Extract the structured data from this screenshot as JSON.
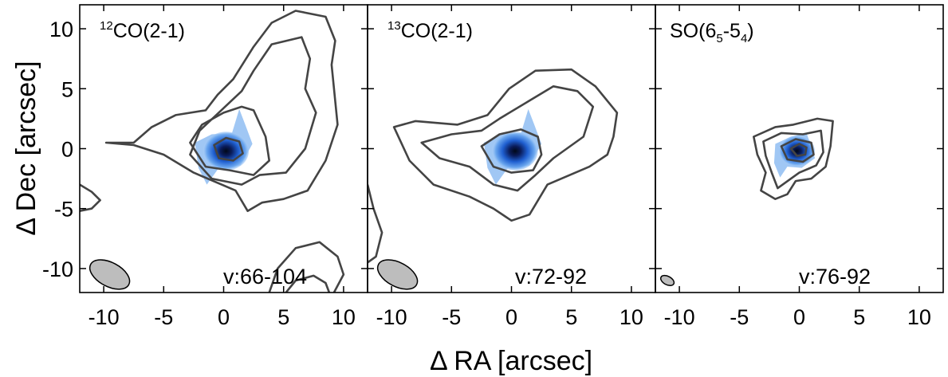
{
  "chart_data": [
    {
      "type": "contour",
      "title_main": "CO(2-1)",
      "title_sup": "12",
      "velocity_label": "v:66-104",
      "xlim": [
        -12,
        12
      ],
      "ylim": [
        -12,
        12
      ],
      "beam": {
        "x": -9.5,
        "y": -10.5,
        "major": 3.6,
        "minor": 2.0,
        "pa_deg": -28
      },
      "emission_peak": {
        "x": 0.2,
        "y": -0.2
      },
      "contours": [
        [
          [
            -9.8,
            0.5
          ],
          [
            -7.5,
            0.5
          ],
          [
            -6,
            1.8
          ],
          [
            -4,
            2.8
          ],
          [
            -1.5,
            3.2
          ],
          [
            -0.5,
            4.5
          ],
          [
            0.8,
            5.8
          ],
          [
            2.5,
            8.5
          ],
          [
            4,
            10.5
          ],
          [
            6,
            11.5
          ],
          [
            8.5,
            11
          ],
          [
            9.3,
            9
          ],
          [
            9,
            7
          ],
          [
            9.2,
            5
          ],
          [
            9.5,
            2
          ],
          [
            8.5,
            -1
          ],
          [
            7,
            -3.5
          ],
          [
            5,
            -4.2
          ],
          [
            3.2,
            -4.5
          ],
          [
            2,
            -5.2
          ],
          [
            1,
            -3.5
          ],
          [
            -2.5,
            -2
          ],
          [
            -5,
            -0.5
          ],
          [
            -7.5,
            0.3
          ],
          [
            -9.8,
            0.5
          ]
        ],
        [
          [
            -2,
            1.5
          ],
          [
            -0.2,
            3.2
          ],
          [
            1.5,
            4.8
          ],
          [
            2.5,
            6.5
          ],
          [
            4,
            8.7
          ],
          [
            6.5,
            9.3
          ],
          [
            7.2,
            7.5
          ],
          [
            6.8,
            5
          ],
          [
            7.7,
            3
          ],
          [
            6.8,
            0
          ],
          [
            5.2,
            -2
          ],
          [
            3,
            -2.2
          ],
          [
            1.5,
            -3
          ],
          [
            -1,
            -2.5
          ],
          [
            -2.8,
            -0.5
          ],
          [
            -2,
            1.5
          ]
        ],
        [
          [
            -2.8,
            0.5
          ],
          [
            -1.8,
            2
          ],
          [
            0,
            3
          ],
          [
            1.5,
            3.5
          ],
          [
            2.5,
            3.2
          ],
          [
            3.5,
            1
          ],
          [
            3.8,
            -1
          ],
          [
            2.5,
            -2.2
          ],
          [
            0.5,
            -1.8
          ],
          [
            -1.5,
            -1.5
          ],
          [
            -2.8,
            0.5
          ]
        ],
        [
          [
            -0.8,
            0.3
          ],
          [
            0.2,
            0.9
          ],
          [
            1.3,
            0.6
          ],
          [
            1.6,
            -0.4
          ],
          [
            0.8,
            -1
          ],
          [
            -0.4,
            -0.8
          ],
          [
            -0.8,
            0.3
          ]
        ],
        [
          [
            -12,
            -3
          ],
          [
            -11,
            -3.6
          ],
          [
            -10.3,
            -4.3
          ],
          [
            -11,
            -5
          ],
          [
            -12,
            -5.2
          ]
        ],
        [
          [
            3.8,
            -12
          ],
          [
            4.5,
            -10
          ],
          [
            6,
            -8.3
          ],
          [
            8,
            -7.8
          ],
          [
            9.5,
            -9
          ],
          [
            10,
            -10.5
          ],
          [
            9.2,
            -12
          ]
        ],
        [
          [
            5.2,
            -12
          ],
          [
            6,
            -11
          ],
          [
            7.5,
            -10.6
          ],
          [
            8.5,
            -11.2
          ],
          [
            8.8,
            -12
          ]
        ]
      ]
    },
    {
      "type": "contour",
      "title_main": "CO(2-1)",
      "title_sup": "13",
      "velocity_label": "v:72-92",
      "xlim": [
        -12,
        12
      ],
      "ylim": [
        -12,
        12
      ],
      "beam": {
        "x": -9.5,
        "y": -10.5,
        "major": 3.6,
        "minor": 2.0,
        "pa_deg": -28
      },
      "emission_peak": {
        "x": 0.3,
        "y": -0.2
      },
      "contours": [
        [
          [
            -9.8,
            1.8
          ],
          [
            -8,
            2.3
          ],
          [
            -4.5,
            2
          ],
          [
            -2,
            2.8
          ],
          [
            -0.2,
            5
          ],
          [
            2,
            6.5
          ],
          [
            5,
            6.6
          ],
          [
            7,
            5.2
          ],
          [
            8.8,
            3
          ],
          [
            8.5,
            1
          ],
          [
            8,
            -0.5
          ],
          [
            6.5,
            -1.5
          ],
          [
            3,
            -3
          ],
          [
            1.5,
            -5.5
          ],
          [
            0,
            -6
          ],
          [
            -1.5,
            -5
          ],
          [
            -3.5,
            -4
          ],
          [
            -6.5,
            -3
          ],
          [
            -8.5,
            -1
          ],
          [
            -9.8,
            1.8
          ]
        ],
        [
          [
            -7.5,
            0.5
          ],
          [
            -5,
            1.2
          ],
          [
            -2.5,
            1.5
          ],
          [
            -1,
            2.5
          ],
          [
            1.5,
            4
          ],
          [
            3.5,
            5.2
          ],
          [
            5.5,
            4.8
          ],
          [
            6.8,
            3.5
          ],
          [
            6,
            1
          ],
          [
            3.5,
            -0.8
          ],
          [
            2,
            -2.2
          ],
          [
            0.5,
            -3.5
          ],
          [
            -1.5,
            -3
          ],
          [
            -3.5,
            -1.5
          ],
          [
            -6,
            -0.8
          ],
          [
            -7.5,
            0.5
          ]
        ],
        [
          [
            -2.5,
            0.2
          ],
          [
            -1,
            1.2
          ],
          [
            0.8,
            1.6
          ],
          [
            2.2,
            1
          ],
          [
            2.5,
            -0.5
          ],
          [
            1.8,
            -1.8
          ],
          [
            0,
            -2
          ],
          [
            -1.5,
            -1.5
          ],
          [
            -2.5,
            0.2
          ]
        ],
        [
          [
            -12,
            -3
          ],
          [
            -11.5,
            -5
          ],
          [
            -10.8,
            -7
          ],
          [
            -11.3,
            -9
          ],
          [
            -12,
            -9.5
          ]
        ]
      ]
    },
    {
      "type": "contour",
      "title_main": "SO(6",
      "title_sub1": "5",
      "title_mid": "-5",
      "title_sub2": "4",
      "title_end": ")",
      "velocity_label": "v:76-92",
      "xlim": [
        -12,
        12
      ],
      "ylim": [
        -12,
        12
      ],
      "beam": {
        "x": -11,
        "y": -11,
        "major": 1.2,
        "minor": 0.7,
        "pa_deg": -28
      },
      "emission_peak": {
        "x": -0.2,
        "y": -0.2
      },
      "contours": [
        [
          [
            -3.8,
            1
          ],
          [
            -2,
            1.8
          ],
          [
            -0.5,
            2
          ],
          [
            1.5,
            2.5
          ],
          [
            2.8,
            2.3
          ],
          [
            2.6,
            0.2
          ],
          [
            2.2,
            -1.5
          ],
          [
            1,
            -2.5
          ],
          [
            -0.3,
            -2.7
          ],
          [
            -1,
            -3.8
          ],
          [
            -2,
            -4.2
          ],
          [
            -3.2,
            -3.5
          ],
          [
            -2.8,
            -2
          ],
          [
            -3.5,
            -0.5
          ],
          [
            -3.8,
            1
          ]
        ],
        [
          [
            -3,
            0.6
          ],
          [
            -1.5,
            1.3
          ],
          [
            0.3,
            1.2
          ],
          [
            1.8,
            1.5
          ],
          [
            2,
            -0.3
          ],
          [
            1.4,
            -1.4
          ],
          [
            0,
            -2
          ],
          [
            -1.8,
            -3.3
          ],
          [
            -2.3,
            -2
          ],
          [
            -2.8,
            -0.6
          ],
          [
            -3,
            0.6
          ]
        ],
        [
          [
            -1.5,
            0.2
          ],
          [
            -0.3,
            0.8
          ],
          [
            1,
            0.5
          ],
          [
            1.2,
            -0.5
          ],
          [
            0.3,
            -1.1
          ],
          [
            -1,
            -0.9
          ],
          [
            -1.5,
            0.2
          ]
        ],
        [
          [
            -0.7,
            0
          ],
          [
            0,
            0.4
          ],
          [
            0.6,
            0.1
          ],
          [
            0.5,
            -0.5
          ],
          [
            -0.2,
            -0.6
          ],
          [
            -0.7,
            0
          ]
        ]
      ]
    }
  ],
  "axes": {
    "x_ticks": [
      -10,
      -5,
      0,
      5,
      10
    ],
    "y_ticks": [
      10,
      5,
      0,
      -5,
      -10
    ],
    "xlabel": "Δ RA [arcsec]",
    "ylabel": "Δ Dec [arcsec]"
  },
  "colors": {
    "contour": "#444444",
    "beam_fill": "#bdbdbd",
    "emission_core": "#0a1c5a",
    "emission_mid": "#1f5fd0",
    "emission_outer": "#8fbdf2"
  }
}
